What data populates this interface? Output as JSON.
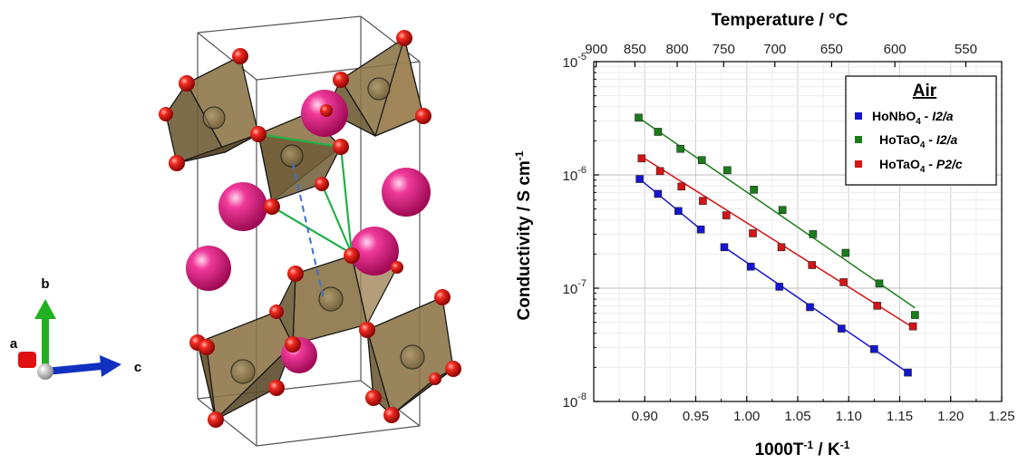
{
  "structure": {
    "axes": [
      {
        "label": "a",
        "color": "#e01010"
      },
      {
        "label": "b",
        "color": "#22b022"
      },
      {
        "label": "c",
        "color": "#1030c0"
      }
    ],
    "colors": {
      "oxygen": "#e41515",
      "cation": "#e0167e",
      "polyhedron": "#8b7346",
      "bond_green": "#22b048",
      "bond_dashed": "#3b6fd0"
    }
  },
  "chart_data": {
    "type": "scatter",
    "xlabel_base": "1000T",
    "xlabel_sup": "-1",
    "xlabel_unit": " / K",
    "xlabel_unit_sup": "-1",
    "ylabel_main": "Conductivity / S cm",
    "ylabel_sup": "-1",
    "top_axis_label": "Temperature / °C",
    "xlim": [
      0.85,
      1.25
    ],
    "ylim": [
      1e-08,
      1e-05
    ],
    "yscale": "log",
    "x_ticks": [
      "0.90",
      "0.95",
      "1.00",
      "1.05",
      "1.10",
      "1.15",
      "1.20",
      "1.25"
    ],
    "y_ticks": [
      {
        "base": "10",
        "exp": "-8",
        "value": 1e-08
      },
      {
        "base": "10",
        "exp": "-7",
        "value": 1e-07
      },
      {
        "base": "10",
        "exp": "-6",
        "value": 1e-06
      },
      {
        "base": "10",
        "exp": "-5",
        "value": 1e-05
      }
    ],
    "top_ticks": [
      900,
      850,
      800,
      750,
      700,
      650,
      600,
      550
    ],
    "grid": true,
    "legend": {
      "title": "Air",
      "placement": "top-right",
      "entries": [
        {
          "formula": "HoNbO",
          "sub": "4",
          "sep": " - ",
          "phase": "I2/a",
          "color": "#1515d0"
        },
        {
          "formula": "HoTaO",
          "sub": "4",
          "sep": " - ",
          "phase": "I2/a",
          "color": "#1a7d1a"
        },
        {
          "formula": "HoTaO",
          "sub": "4",
          "sep": " - ",
          "phase": "P2/c",
          "color": "#d51515"
        }
      ]
    },
    "series": [
      {
        "color": "#1515d0",
        "x": [
          0.895,
          0.913,
          0.933,
          0.955,
          0.978,
          1.004,
          1.032,
          1.062,
          1.093,
          1.125,
          1.158
        ],
        "y": [
          9.2e-07,
          6.8e-07,
          4.8e-07,
          3.3e-07,
          2.3e-07,
          1.55e-07,
          1.03e-07,
          6.8e-08,
          4.4e-08,
          2.9e-08,
          1.8e-08
        ],
        "fits": [
          {
            "x": [
              0.895,
              0.955
            ],
            "y": [
              9.2e-07,
              3.3e-07
            ]
          },
          {
            "x": [
              0.978,
              1.158
            ],
            "y": [
              2.3e-07,
              1.8e-08
            ]
          }
        ]
      },
      {
        "color": "#1a7d1a",
        "x": [
          0.894,
          0.913,
          0.935,
          0.956,
          0.981,
          1.007,
          1.035,
          1.065,
          1.097,
          1.13,
          1.165
        ],
        "y": [
          3.2e-06,
          2.4e-06,
          1.7e-06,
          1.35e-06,
          1.1e-06,
          7.4e-07,
          4.9e-07,
          3e-07,
          2.05e-07,
          1.1e-07,
          5.8e-08
        ],
        "fits": [
          {
            "x": [
              0.894,
              1.165
            ],
            "y": [
              3.2e-06,
              6.7e-08
            ]
          }
        ]
      },
      {
        "color": "#d51515",
        "x": [
          0.897,
          0.915,
          0.936,
          0.957,
          0.98,
          1.006,
          1.034,
          1.064,
          1.095,
          1.128,
          1.163
        ],
        "y": [
          1.4e-06,
          1.08e-06,
          7.9e-07,
          5.9e-07,
          4.4e-07,
          3.05e-07,
          2.3e-07,
          1.6e-07,
          1.13e-07,
          7e-08,
          4.6e-08
        ],
        "fits": [
          {
            "x": [
              0.897,
              1.163
            ],
            "y": [
              1.45e-06,
              4.5e-08
            ]
          }
        ]
      }
    ]
  }
}
